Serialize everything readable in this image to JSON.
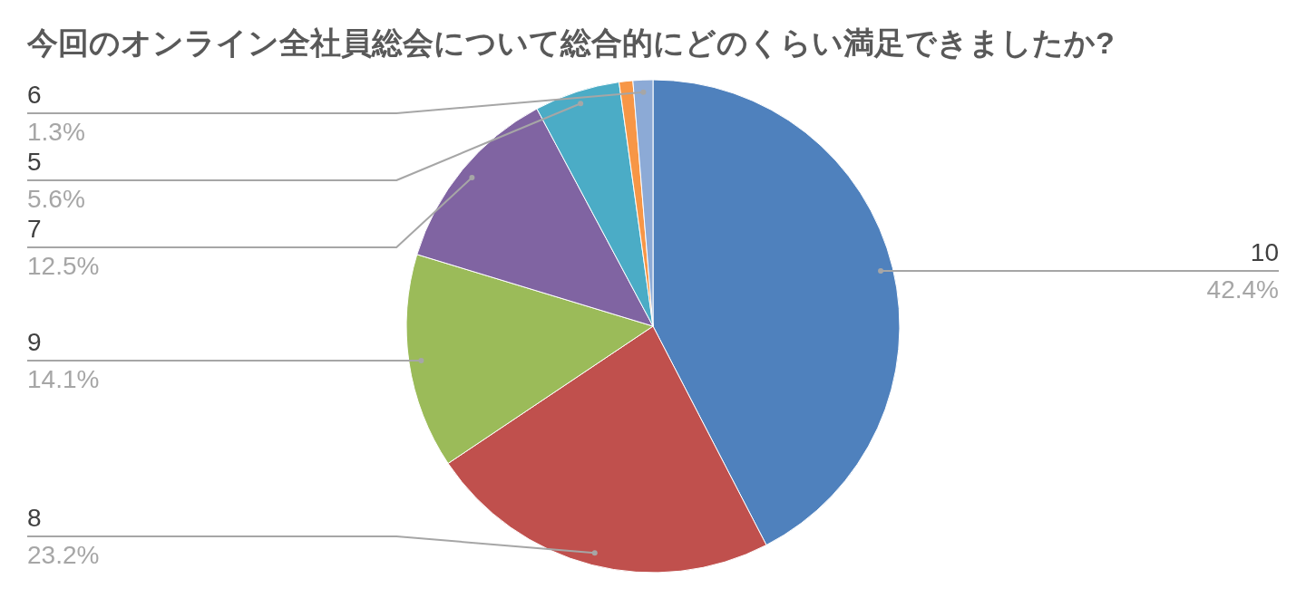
{
  "chart_data": {
    "type": "pie",
    "title": "今回のオンライン全社員総会について総合的にどのくらい満足できましたか?",
    "categories": [
      "10",
      "8",
      "9",
      "7",
      "5",
      null,
      "6"
    ],
    "values": [
      42.4,
      23.2,
      14.1,
      12.5,
      5.6,
      0.9,
      1.3
    ],
    "colors": [
      "#4f81bd",
      "#c0504d",
      "#9bbb59",
      "#8064a2",
      "#4bacc6",
      "#f79646",
      "#8caad6"
    ],
    "value_labels": [
      "42.4%",
      "23.2%",
      "14.1%",
      "12.5%",
      "5.6%",
      null,
      "1.3%"
    ]
  }
}
